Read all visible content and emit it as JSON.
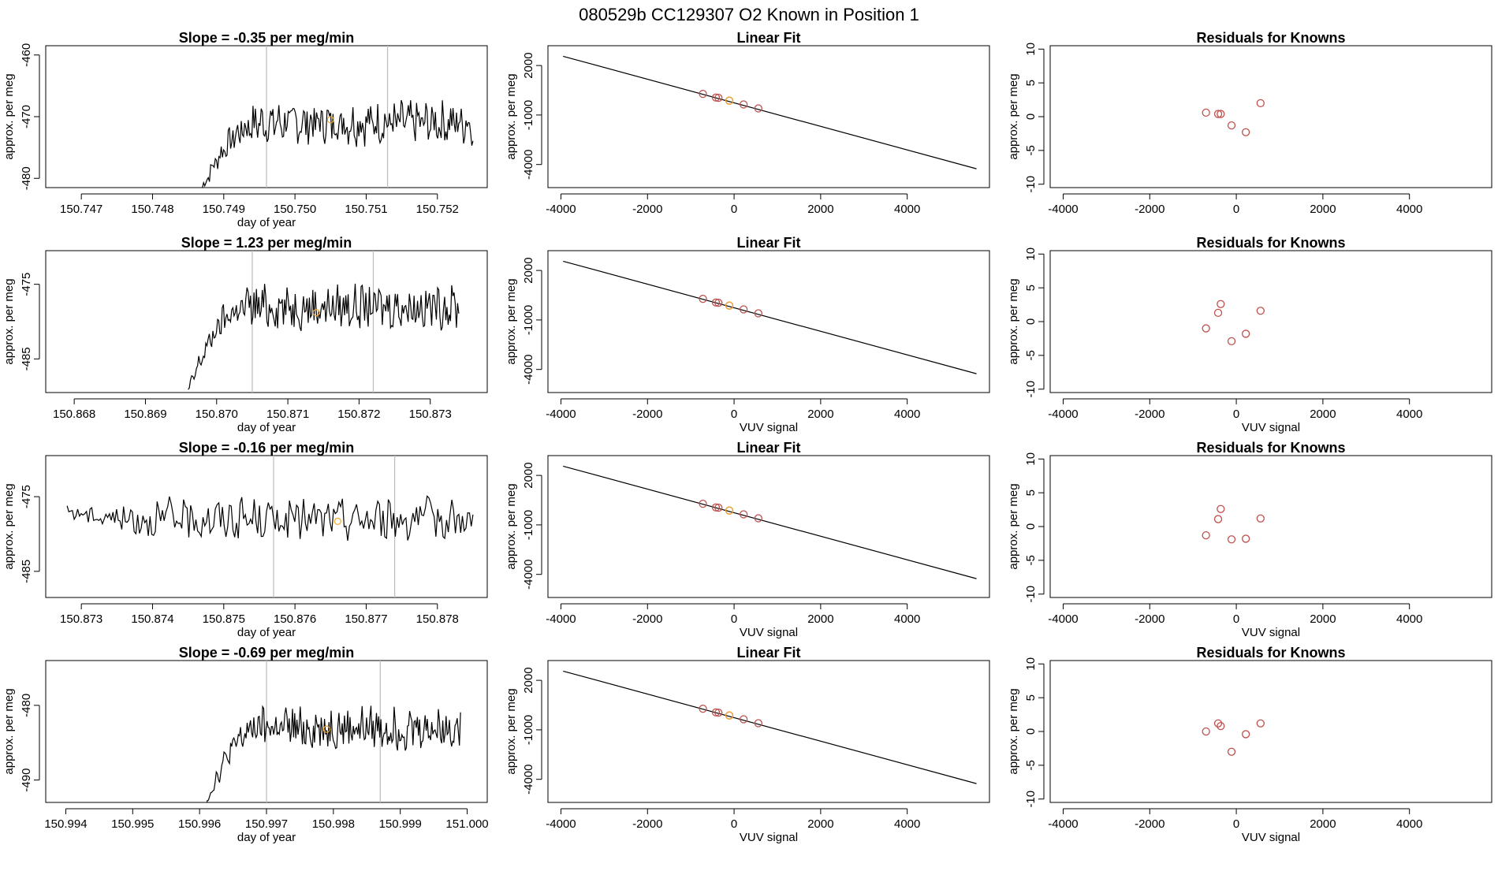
{
  "header": {
    "title": "080529b      CC129307    O2 Known in Position  1"
  },
  "colors": {
    "line": "#000000",
    "point": "#c0504d",
    "highlight": "#f0a830",
    "vline": "#bbbbbb",
    "axis": "#000000"
  },
  "chart_data": [
    {
      "type": "line",
      "title": "Slope =  -0.35  per meg/min",
      "xlabel": "day of year",
      "ylabel": "approx. per meg",
      "xlim": [
        150.7465,
        150.7527
      ],
      "ylim": [
        -481.5,
        -458.5
      ],
      "xticks": [
        150.747,
        150.748,
        150.749,
        150.75,
        150.751,
        150.752
      ],
      "xtick_labels": [
        "150.747",
        "150.748",
        "150.749",
        "150.750",
        "150.751",
        "150.752"
      ],
      "yticks": [
        -480,
        -470,
        -460
      ],
      "ytick_labels": [
        "-480",
        "-470",
        "-460"
      ],
      "vlines": [
        150.7496,
        150.7513
      ],
      "x_start": 150.7487,
      "x_end": 150.7525,
      "y_start": -481.5,
      "y_level": -471,
      "noise": 3,
      "highlight": {
        "x": 150.7505,
        "y": -470.5
      }
    },
    {
      "type": "line",
      "title": "Slope =  1.23  per meg/min",
      "xlabel": "day of year",
      "ylabel": "approx. per meg",
      "xlim": [
        150.8676,
        150.8738
      ],
      "ylim": [
        -489.5,
        -470.5
      ],
      "xticks": [
        150.868,
        150.869,
        150.87,
        150.871,
        150.872,
        150.873
      ],
      "xtick_labels": [
        "150.868",
        "150.869",
        "150.870",
        "150.871",
        "150.872",
        "150.873"
      ],
      "yticks": [
        -485,
        -475
      ],
      "ytick_labels": [
        "-485",
        "-475"
      ],
      "vlines": [
        150.8705,
        150.8722
      ],
      "x_start": 150.8696,
      "x_end": 150.8734,
      "y_start": -489.5,
      "y_level": -478,
      "noise": 2.5,
      "highlight": {
        "x": 150.8714,
        "y": -478.8
      }
    },
    {
      "type": "line",
      "title": "Slope =  -0.16  per meg/min",
      "xlabel": "day of year",
      "ylabel": "approx. per meg",
      "xlim": [
        150.8725,
        150.8787
      ],
      "ylim": [
        -488.5,
        -469.5
      ],
      "xticks": [
        150.873,
        150.874,
        150.875,
        150.876,
        150.877,
        150.878
      ],
      "xtick_labels": [
        "150.873",
        "150.874",
        "150.875",
        "150.876",
        "150.877",
        "150.878"
      ],
      "yticks": [
        -485,
        -475
      ],
      "ytick_labels": [
        "-485",
        "-475"
      ],
      "vlines": [
        150.8757,
        150.8774
      ],
      "x_start": 150.8728,
      "x_end": 150.8785,
      "y_start": -477,
      "y_level": -478,
      "noise": 2.4,
      "highlight": {
        "x": 150.8766,
        "y": -478.3
      }
    },
    {
      "type": "line",
      "title": "Slope =  -0.69  per meg/min",
      "xlabel": "day of year",
      "ylabel": "approx. per meg",
      "xlim": [
        150.9937,
        151.0003
      ],
      "ylim": [
        -493,
        -474
      ],
      "xticks": [
        150.994,
        150.995,
        150.996,
        150.997,
        150.998,
        150.999,
        151.0
      ],
      "xtick_labels": [
        "150.994",
        "150.995",
        "150.996",
        "150.997",
        "150.998",
        "150.999",
        "151.000"
      ],
      "yticks": [
        -490,
        -480
      ],
      "ytick_labels": [
        "-490",
        "-480"
      ],
      "vlines": [
        150.997,
        150.9987
      ],
      "x_start": 150.9961,
      "x_end": 150.9999,
      "y_start": -493,
      "y_level": -483,
      "noise": 2.4,
      "highlight": {
        "x": 150.9979,
        "y": -483.2
      }
    },
    {
      "type": "scatter",
      "title": "Linear Fit",
      "xlabel": "",
      "ylabel": "approx. per meg",
      "xlim": [
        -4300,
        5900
      ],
      "ylim": [
        -5400,
        3200
      ],
      "xticks": [
        -4000,
        -2000,
        0,
        2000,
        4000
      ],
      "xtick_labels": [
        "-4000",
        "-2000",
        "0",
        "2000",
        "4000"
      ],
      "yticks": [
        -4000,
        -1000,
        2000
      ],
      "ytick_labels": [
        "-4000",
        "-1000",
        "2000"
      ],
      "fit_line": [
        [
          -3950,
          2560
        ],
        [
          5600,
          -4260
        ]
      ],
      "points": [
        [
          -720,
          280
        ],
        [
          -420,
          60
        ],
        [
          -360,
          40
        ],
        [
          -110,
          -130
        ],
        [
          220,
          -360
        ],
        [
          560,
          -600
        ]
      ],
      "highlight": [
        [
          -110,
          -130
        ]
      ]
    },
    {
      "type": "scatter",
      "title": "Linear Fit",
      "xlabel": "VUV signal",
      "ylabel": "approx. per meg",
      "xlim": [
        -4300,
        5900
      ],
      "ylim": [
        -5400,
        3200
      ],
      "xticks": [
        -4000,
        -2000,
        0,
        2000,
        4000
      ],
      "xtick_labels": [
        "-4000",
        "-2000",
        "0",
        "2000",
        "4000"
      ],
      "yticks": [
        -4000,
        -1000,
        2000
      ],
      "ytick_labels": [
        "-4000",
        "-1000",
        "2000"
      ],
      "fit_line": [
        [
          -3950,
          2560
        ],
        [
          5600,
          -4260
        ]
      ],
      "points": [
        [
          -720,
          280
        ],
        [
          -420,
          60
        ],
        [
          -360,
          40
        ],
        [
          -110,
          -130
        ],
        [
          220,
          -360
        ],
        [
          560,
          -600
        ]
      ],
      "highlight": [
        [
          -110,
          -130
        ]
      ]
    },
    {
      "type": "scatter",
      "title": "Linear Fit",
      "xlabel": "VUV signal",
      "ylabel": "approx. per meg",
      "xlim": [
        -4300,
        5900
      ],
      "ylim": [
        -5400,
        3200
      ],
      "xticks": [
        -4000,
        -2000,
        0,
        2000,
        4000
      ],
      "xtick_labels": [
        "-4000",
        "-2000",
        "0",
        "2000",
        "4000"
      ],
      "yticks": [
        -4000,
        -1000,
        2000
      ],
      "ytick_labels": [
        "-4000",
        "-1000",
        "2000"
      ],
      "fit_line": [
        [
          -3950,
          2560
        ],
        [
          5600,
          -4260
        ]
      ],
      "points": [
        [
          -720,
          280
        ],
        [
          -420,
          60
        ],
        [
          -360,
          40
        ],
        [
          -110,
          -130
        ],
        [
          220,
          -360
        ],
        [
          560,
          -600
        ]
      ],
      "highlight": [
        [
          -110,
          -130
        ]
      ]
    },
    {
      "type": "scatter",
      "title": "Linear Fit",
      "xlabel": "VUV signal",
      "ylabel": "approx. per meg",
      "xlim": [
        -4300,
        5900
      ],
      "ylim": [
        -5400,
        3200
      ],
      "xticks": [
        -4000,
        -2000,
        0,
        2000,
        4000
      ],
      "xtick_labels": [
        "-4000",
        "-2000",
        "0",
        "2000",
        "4000"
      ],
      "yticks": [
        -4000,
        -1000,
        2000
      ],
      "ytick_labels": [
        "-4000",
        "-1000",
        "2000"
      ],
      "fit_line": [
        [
          -3950,
          2560
        ],
        [
          5600,
          -4260
        ]
      ],
      "points": [
        [
          -720,
          280
        ],
        [
          -420,
          60
        ],
        [
          -360,
          40
        ],
        [
          -110,
          -130
        ],
        [
          220,
          -360
        ],
        [
          560,
          -600
        ]
      ],
      "highlight": [
        [
          -110,
          -130
        ]
      ]
    },
    {
      "type": "scatter",
      "title": "Residuals for Knowns",
      "xlabel": "",
      "ylabel": "approx. per meg",
      "xlim": [
        -4300,
        5900
      ],
      "ylim": [
        -10.5,
        10.5
      ],
      "xticks": [
        -4000,
        -2000,
        0,
        2000,
        4000
      ],
      "xtick_labels": [
        "-4000",
        "-2000",
        "0",
        "2000",
        "4000"
      ],
      "yticks": [
        -10,
        -5,
        0,
        5,
        10
      ],
      "ytick_labels": [
        "-10",
        "-5",
        "0",
        "5",
        "10"
      ],
      "points": [
        [
          -700,
          0.6
        ],
        [
          -420,
          0.4
        ],
        [
          -360,
          0.4
        ],
        [
          -110,
          -1.3
        ],
        [
          220,
          -2.3
        ],
        [
          560,
          2.0
        ]
      ]
    },
    {
      "type": "scatter",
      "title": "Residuals for Knowns",
      "xlabel": "VUV signal",
      "ylabel": "approx. per meg",
      "xlim": [
        -4300,
        5900
      ],
      "ylim": [
        -10.5,
        10.5
      ],
      "xticks": [
        -4000,
        -2000,
        0,
        2000,
        4000
      ],
      "xtick_labels": [
        "-4000",
        "-2000",
        "0",
        "2000",
        "4000"
      ],
      "yticks": [
        -10,
        -5,
        0,
        5,
        10
      ],
      "ytick_labels": [
        "-10",
        "-5",
        "0",
        "5",
        "10"
      ],
      "points": [
        [
          -700,
          -1.0
        ],
        [
          -420,
          1.3
        ],
        [
          -360,
          2.6
        ],
        [
          -110,
          -2.9
        ],
        [
          220,
          -1.8
        ],
        [
          560,
          1.6
        ]
      ]
    },
    {
      "type": "scatter",
      "title": "Residuals for Knowns",
      "xlabel": "VUV signal",
      "ylabel": "approx. per meg",
      "xlim": [
        -4300,
        5900
      ],
      "ylim": [
        -10.5,
        10.5
      ],
      "xticks": [
        -4000,
        -2000,
        0,
        2000,
        4000
      ],
      "xtick_labels": [
        "-4000",
        "-2000",
        "0",
        "2000",
        "4000"
      ],
      "yticks": [
        -10,
        -5,
        0,
        5,
        10
      ],
      "ytick_labels": [
        "-10",
        "-5",
        "0",
        "5",
        "10"
      ],
      "points": [
        [
          -700,
          -1.3
        ],
        [
          -420,
          1.1
        ],
        [
          -360,
          2.6
        ],
        [
          -110,
          -1.9
        ],
        [
          220,
          -1.8
        ],
        [
          560,
          1.2
        ]
      ]
    },
    {
      "type": "scatter",
      "title": "Residuals for Knowns",
      "xlabel": "VUV signal",
      "ylabel": "approx. per meg",
      "xlim": [
        -4300,
        5900
      ],
      "ylim": [
        -10.5,
        10.5
      ],
      "xticks": [
        -4000,
        -2000,
        0,
        2000,
        4000
      ],
      "xtick_labels": [
        "-4000",
        "-2000",
        "0",
        "2000",
        "4000"
      ],
      "yticks": [
        -10,
        -5,
        0,
        5,
        10
      ],
      "ytick_labels": [
        "-10",
        "-5",
        "0",
        "5",
        "10"
      ],
      "points": [
        [
          -700,
          0.0
        ],
        [
          -420,
          1.2
        ],
        [
          -360,
          0.8
        ],
        [
          -110,
          -3.0
        ],
        [
          220,
          -0.4
        ],
        [
          560,
          1.2
        ]
      ]
    }
  ]
}
